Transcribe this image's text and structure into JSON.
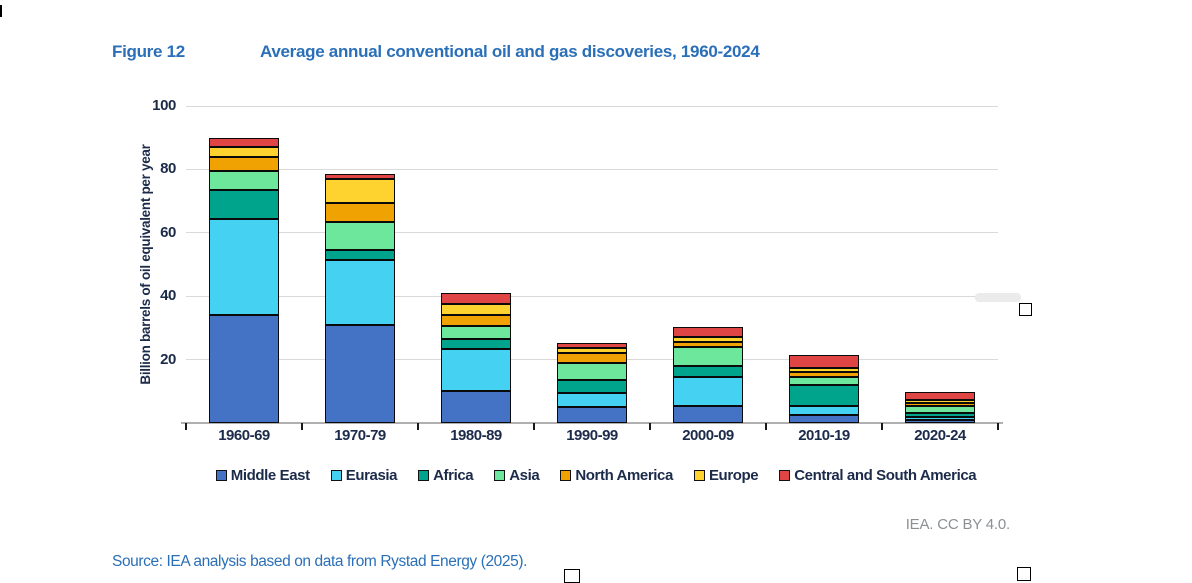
{
  "figure_caption": {
    "label": "Figure 12",
    "title": "Average annual conventional oil and gas discoveries, 1960-2024"
  },
  "chart_data": {
    "type": "bar",
    "stacked": true,
    "categories": [
      "1960-69",
      "1970-79",
      "1980-89",
      "1990-99",
      "2000-09",
      "2010-19",
      "2020-24"
    ],
    "series": [
      {
        "name": "Middle East",
        "color": "#4472C4",
        "values": [
          34.0,
          31.0,
          10.0,
          5.0,
          5.5,
          2.5,
          1.0
        ]
      },
      {
        "name": "Eurasia",
        "color": "#45D2F2",
        "values": [
          30.5,
          20.5,
          13.5,
          4.5,
          9.0,
          3.0,
          1.0
        ]
      },
      {
        "name": "Africa",
        "color": "#00A38C",
        "values": [
          9.0,
          3.0,
          3.0,
          4.0,
          3.5,
          6.5,
          1.1
        ]
      },
      {
        "name": "Asia",
        "color": "#6CE79B",
        "values": [
          6.0,
          9.0,
          4.0,
          5.5,
          6.0,
          2.5,
          2.2
        ]
      },
      {
        "name": "North America",
        "color": "#F0A202",
        "values": [
          4.5,
          6.0,
          3.5,
          3.0,
          1.6,
          1.6,
          1.1
        ]
      },
      {
        "name": "Europe",
        "color": "#FFD32F",
        "values": [
          3.0,
          7.5,
          3.5,
          1.7,
          1.4,
          1.3,
          1.0
        ]
      },
      {
        "name": "Central and South America",
        "color": "#E04545",
        "values": [
          3.0,
          1.7,
          3.5,
          1.6,
          3.3,
          4.0,
          2.4
        ]
      }
    ],
    "title": "Average annual conventional oil and gas discoveries, 1960-2024",
    "xlabel": "",
    "ylabel": "Billion barrels of oil equivalent per year",
    "ylim": [
      0,
      100
    ],
    "yticks": [
      20,
      40,
      60,
      80,
      100
    ],
    "ytick_labels": [
      "20",
      "40",
      "60",
      "80",
      "100"
    ],
    "grid": "horizontal",
    "legend_position": "bottom"
  },
  "attribution": "IEA. CC BY 4.0.",
  "source_line": "Source: IEA analysis based on data from Rystad Energy (2025).",
  "icons": {
    "empty_checkbox": "□"
  },
  "colors": {
    "caption_blue": "#2a6fb7",
    "axis_text_navy": "#1c2b4a",
    "gridline_gray": "#d9d9d9",
    "attribution_gray": "#8b9095"
  }
}
